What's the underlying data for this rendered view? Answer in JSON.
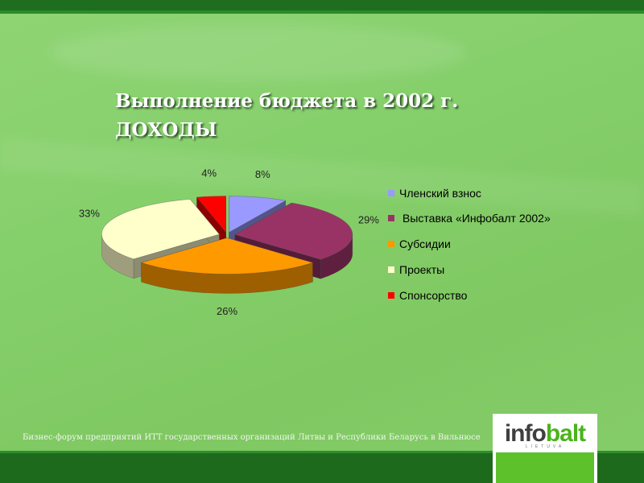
{
  "slide": {
    "title_line1": "Выполнение бюджета в 2002 г.",
    "title_line2": "ДОХОДЫ",
    "footer": "Бизнес-форум предприятий ИТТ государственных организаций Литвы и Республики Беларусь в Вильнюсе"
  },
  "logo": {
    "word_part1": "info",
    "word_part2": "balt",
    "subtitle": "LIETUVA"
  },
  "chart_data": {
    "type": "pie",
    "style": "3d exploded",
    "title": "",
    "legend_position": "right",
    "slices": [
      {
        "label": "Членский взнос",
        "value": 8,
        "value_label": "8%",
        "color": "#9999ff"
      },
      {
        "label": "Выставка «Инфобалт 2002»",
        "value": 29,
        "value_label": "29%",
        "color": "#993366"
      },
      {
        "label": "Субсидии",
        "value": 26,
        "value_label": "26%",
        "color": "#ff9900"
      },
      {
        "label": "Проекты",
        "value": 33,
        "value_label": "33%",
        "color": "#ffffcc"
      },
      {
        "label": "Спонсорство",
        "value": 4,
        "value_label": "4%",
        "color": "#ff0000"
      }
    ]
  }
}
